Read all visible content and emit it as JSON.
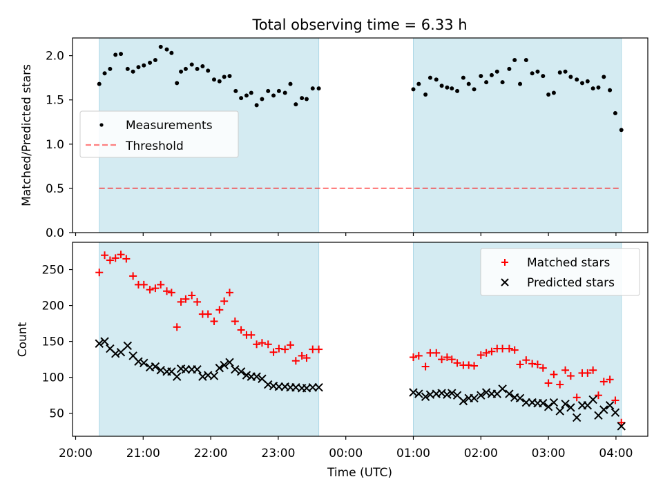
{
  "title": "Total observing time = 6.33 h",
  "xlabel": "Time (UTC)",
  "colors": {
    "shade": "#add8e6",
    "measurement": "#000000",
    "threshold": "#ff0000",
    "matched": "#ff0000",
    "predicted": "#000000"
  },
  "chart_data": [
    {
      "type": "scatter",
      "ylabel": "Matched/Predicted stars",
      "ylim": [
        0,
        2.2
      ],
      "yticks": [
        "0.0",
        "0.5",
        "1.0",
        "1.5",
        "2.0"
      ],
      "ytick_values": [
        0,
        0.5,
        1.0,
        1.5,
        2.0
      ],
      "xticks": [
        "20:00",
        "21:00",
        "22:00",
        "23:00",
        "00:00",
        "01:00",
        "02:00",
        "03:00",
        "04:00"
      ],
      "xtick_hours": [
        0,
        1,
        2,
        3,
        4,
        5,
        6,
        7,
        8
      ],
      "shaded_intervals_hours": [
        [
          0.35,
          3.6
        ],
        [
          5.0,
          8.08
        ]
      ],
      "legend": {
        "position": "center-left",
        "entries": [
          "Measurements",
          "Threshold"
        ]
      },
      "threshold": {
        "name": "Threshold",
        "y": 0.5
      },
      "series": [
        {
          "name": "Measurements",
          "x_hours": [
            0.35,
            0.43,
            0.51,
            0.59,
            0.67,
            0.77,
            0.85,
            0.93,
            1.01,
            1.1,
            1.18,
            1.26,
            1.35,
            1.42,
            1.5,
            1.56,
            1.63,
            1.72,
            1.8,
            1.88,
            1.96,
            2.05,
            2.13,
            2.2,
            2.28,
            2.37,
            2.45,
            2.53,
            2.6,
            2.68,
            2.76,
            2.85,
            2.93,
            3.01,
            3.1,
            3.18,
            3.26,
            3.35,
            3.42,
            3.51,
            3.6,
            5.0,
            5.08,
            5.18,
            5.25,
            5.34,
            5.42,
            5.5,
            5.57,
            5.65,
            5.74,
            5.82,
            5.9,
            6.0,
            6.08,
            6.16,
            6.24,
            6.32,
            6.42,
            6.5,
            6.58,
            6.67,
            6.76,
            6.84,
            6.92,
            7.0,
            7.08,
            7.17,
            7.25,
            7.33,
            7.42,
            7.5,
            7.58,
            7.66,
            7.74,
            7.82,
            7.91,
            7.99,
            8.08
          ],
          "values": [
            1.68,
            1.8,
            1.85,
            2.01,
            2.02,
            1.85,
            1.82,
            1.87,
            1.89,
            1.92,
            1.95,
            2.1,
            2.07,
            2.03,
            1.69,
            1.82,
            1.85,
            1.9,
            1.85,
            1.88,
            1.83,
            1.73,
            1.71,
            1.76,
            1.77,
            1.6,
            1.52,
            1.55,
            1.58,
            1.44,
            1.51,
            1.6,
            1.55,
            1.6,
            1.58,
            1.68,
            1.45,
            1.52,
            1.51,
            1.63,
            1.63,
            1.62,
            1.68,
            1.56,
            1.75,
            1.73,
            1.66,
            1.64,
            1.63,
            1.6,
            1.75,
            1.68,
            1.62,
            1.77,
            1.7,
            1.78,
            1.82,
            1.7,
            1.85,
            1.95,
            1.68,
            1.95,
            1.8,
            1.82,
            1.77,
            1.56,
            1.58,
            1.81,
            1.82,
            1.76,
            1.73,
            1.69,
            1.71,
            1.63,
            1.64,
            1.76,
            1.61,
            1.35,
            1.16
          ]
        }
      ]
    },
    {
      "type": "scatter",
      "ylabel": "Count",
      "ylim": [
        18,
        288
      ],
      "yticks": [
        "50",
        "100",
        "150",
        "200",
        "250"
      ],
      "ytick_values": [
        50,
        100,
        150,
        200,
        250
      ],
      "xticks": [
        "20:00",
        "21:00",
        "22:00",
        "23:00",
        "00:00",
        "01:00",
        "02:00",
        "03:00",
        "04:00"
      ],
      "xtick_hours": [
        0,
        1,
        2,
        3,
        4,
        5,
        6,
        7,
        8
      ],
      "shaded_intervals_hours": [
        [
          0.35,
          3.6
        ],
        [
          5.0,
          8.08
        ]
      ],
      "legend": {
        "position": "top-right",
        "entries": [
          "Matched stars",
          "Predicted stars"
        ]
      },
      "series": [
        {
          "name": "Matched stars",
          "marker": "+",
          "x_hours": [
            0.35,
            0.43,
            0.51,
            0.59,
            0.67,
            0.75,
            0.85,
            0.93,
            1.01,
            1.1,
            1.18,
            1.26,
            1.35,
            1.42,
            1.5,
            1.56,
            1.63,
            1.72,
            1.8,
            1.88,
            1.96,
            2.05,
            2.13,
            2.2,
            2.28,
            2.36,
            2.45,
            2.53,
            2.6,
            2.68,
            2.76,
            2.85,
            2.93,
            3.01,
            3.1,
            3.18,
            3.26,
            3.35,
            3.42,
            3.51,
            3.6,
            5.0,
            5.08,
            5.18,
            5.25,
            5.34,
            5.42,
            5.5,
            5.57,
            5.65,
            5.74,
            5.82,
            5.9,
            6.0,
            6.08,
            6.16,
            6.24,
            6.32,
            6.42,
            6.5,
            6.58,
            6.67,
            6.76,
            6.84,
            6.92,
            7.0,
            7.08,
            7.17,
            7.25,
            7.33,
            7.42,
            7.5,
            7.58,
            7.66,
            7.74,
            7.82,
            7.91,
            7.99,
            8.08
          ],
          "values": [
            246,
            270,
            263,
            266,
            271,
            265,
            241,
            229,
            229,
            222,
            224,
            229,
            220,
            218,
            170,
            205,
            209,
            214,
            205,
            188,
            188,
            178,
            194,
            206,
            218,
            178,
            166,
            159,
            159,
            146,
            148,
            146,
            135,
            140,
            139,
            145,
            123,
            130,
            127,
            139,
            139,
            128,
            130,
            115,
            134,
            134,
            125,
            128,
            125,
            120,
            117,
            117,
            116,
            131,
            134,
            136,
            140,
            140,
            140,
            138,
            118,
            124,
            119,
            118,
            113,
            92,
            104,
            90,
            110,
            102,
            72,
            106,
            106,
            110,
            75,
            94,
            97,
            68,
            37
          ],
          "count": 79
        },
        {
          "name": "Predicted stars",
          "marker": "x",
          "x_hours": [
            0.35,
            0.43,
            0.51,
            0.59,
            0.67,
            0.77,
            0.85,
            0.93,
            1.01,
            1.1,
            1.18,
            1.26,
            1.35,
            1.42,
            1.5,
            1.56,
            1.63,
            1.72,
            1.8,
            1.88,
            1.96,
            2.05,
            2.13,
            2.2,
            2.28,
            2.36,
            2.45,
            2.53,
            2.6,
            2.68,
            2.76,
            2.85,
            2.93,
            3.01,
            3.1,
            3.18,
            3.26,
            3.35,
            3.42,
            3.51,
            3.6,
            5.0,
            5.08,
            5.18,
            5.25,
            5.34,
            5.42,
            5.5,
            5.57,
            5.65,
            5.74,
            5.82,
            5.9,
            6.0,
            6.08,
            6.16,
            6.24,
            6.32,
            6.42,
            6.5,
            6.58,
            6.67,
            6.76,
            6.84,
            6.92,
            7.0,
            7.08,
            7.17,
            7.25,
            7.33,
            7.42,
            7.5,
            7.58,
            7.66,
            7.74,
            7.82,
            7.91,
            7.99,
            8.08
          ],
          "values": [
            147,
            150,
            140,
            133,
            135,
            144,
            130,
            122,
            120,
            114,
            115,
            110,
            108,
            108,
            101,
            112,
            111,
            111,
            111,
            101,
            103,
            102,
            113,
            117,
            121,
            111,
            108,
            103,
            101,
            101,
            98,
            90,
            88,
            87,
            87,
            86,
            86,
            85,
            85,
            86,
            86,
            79,
            77,
            73,
            76,
            77,
            78,
            76,
            78,
            75,
            67,
            71,
            71,
            75,
            79,
            77,
            77,
            84,
            77,
            72,
            71,
            65,
            65,
            64,
            64,
            59,
            65,
            53,
            63,
            58,
            44,
            61,
            61,
            69,
            47,
            55,
            61,
            51,
            32
          ]
        }
      ]
    }
  ]
}
